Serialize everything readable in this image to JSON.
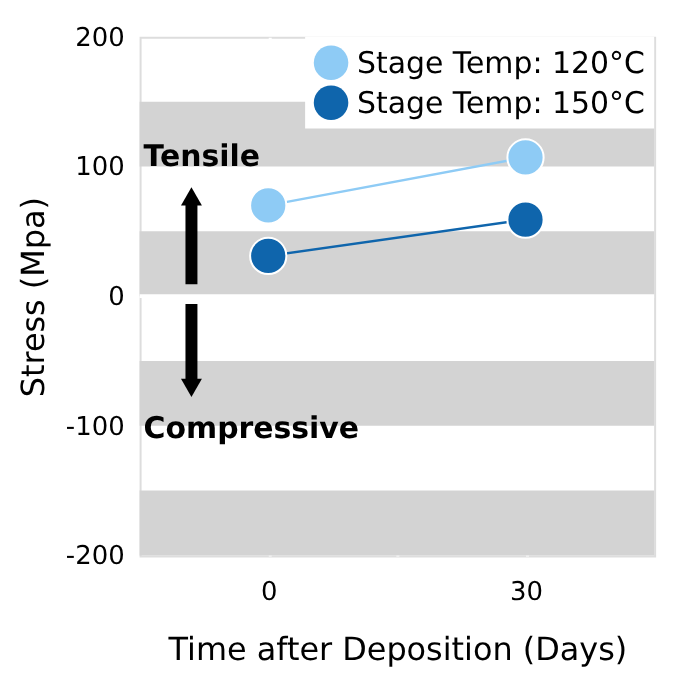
{
  "chart_data": {
    "type": "line",
    "xlabel": "Time after Deposition (Days)",
    "ylabel": "Stress (Mpa)",
    "x": [
      0,
      30
    ],
    "series": [
      {
        "name": "Stage Temp: 120°C",
        "color": "#8ecbf5",
        "values": [
          70,
          107
        ]
      },
      {
        "name": "Stage Temp: 150°C",
        "color": "#0f65ac",
        "values": [
          31,
          59
        ]
      }
    ],
    "xlim": [
      -15,
      45
    ],
    "xticks": [
      0,
      {
        "value": 15,
        "label": null
      },
      30
    ],
    "ylim": [
      -200,
      200
    ],
    "yticks": [
      -200,
      -100,
      0,
      100,
      200
    ],
    "grid": "x",
    "marker": "circle",
    "legend": "top right",
    "bands": [
      {
        "axis": "y",
        "from": 100,
        "to": 150,
        "color": "#d3d3d3",
        "label": null
      },
      {
        "axis": "y",
        "from": 0,
        "to": 50,
        "color": "#d3d3d3",
        "label": null
      },
      {
        "axis": "y",
        "from": -100,
        "to": -50,
        "color": "#d3d3d3",
        "label": null
      },
      {
        "axis": "y",
        "from": -200,
        "to": -150,
        "color": "#d3d3d3",
        "label": null
      }
    ],
    "ref_lines": [
      {
        "axis": "y",
        "value": 0,
        "color": "#ffffff",
        "label": null
      }
    ],
    "annotations": [
      "Tensile",
      "Compressive"
    ]
  }
}
